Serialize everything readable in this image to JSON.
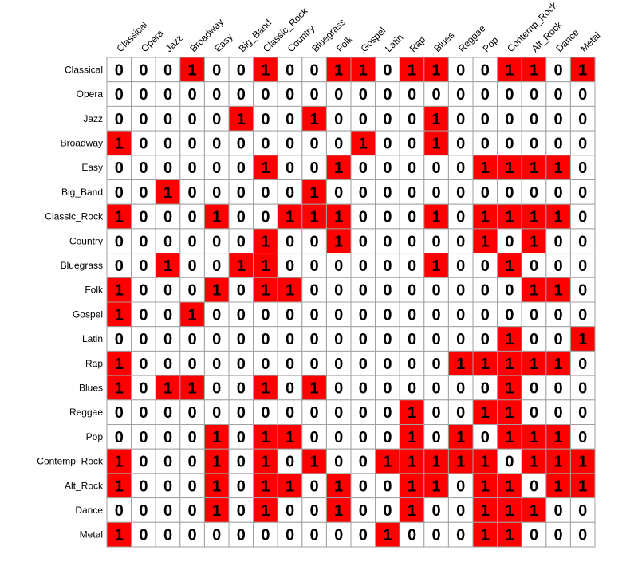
{
  "chart_data": {
    "type": "heatmap",
    "title": "",
    "xlabel": "",
    "ylabel": "",
    "rows": [
      "Classical",
      "Opera",
      "Jazz",
      "Broadway",
      "Easy",
      "Big_Band",
      "Classic_Rock",
      "Country",
      "Bluegrass",
      "Folk",
      "Gospel",
      "Latin",
      "Rap",
      "Blues",
      "Reggae",
      "Pop",
      "Contemp_Rock",
      "Alt_Rock",
      "Dance",
      "Metal"
    ],
    "columns": [
      "Classical",
      "Opera",
      "Jazz",
      "Broadway",
      "Easy",
      "Big_Band",
      "Classic_Rock",
      "Country",
      "Bluegrass",
      "Folk",
      "Gospel",
      "Latin",
      "Rap",
      "Blues",
      "Reggae",
      "Pop",
      "Contemp_Rock",
      "Alt_Rock",
      "Dance",
      "Metal"
    ],
    "values": [
      [
        0,
        0,
        0,
        1,
        0,
        0,
        1,
        0,
        0,
        1,
        1,
        0,
        1,
        1,
        0,
        0,
        1,
        1,
        0,
        1
      ],
      [
        0,
        0,
        0,
        0,
        0,
        0,
        0,
        0,
        0,
        0,
        0,
        0,
        0,
        0,
        0,
        0,
        0,
        0,
        0,
        0
      ],
      [
        0,
        0,
        0,
        0,
        0,
        1,
        0,
        0,
        1,
        0,
        0,
        0,
        0,
        1,
        0,
        0,
        0,
        0,
        0,
        0
      ],
      [
        1,
        0,
        0,
        0,
        0,
        0,
        0,
        0,
        0,
        0,
        1,
        0,
        0,
        1,
        0,
        0,
        0,
        0,
        0,
        0
      ],
      [
        0,
        0,
        0,
        0,
        0,
        0,
        1,
        0,
        0,
        1,
        0,
        0,
        0,
        0,
        0,
        1,
        1,
        1,
        1,
        0
      ],
      [
        0,
        0,
        1,
        0,
        0,
        0,
        0,
        0,
        1,
        0,
        0,
        0,
        0,
        0,
        0,
        0,
        0,
        0,
        0,
        0
      ],
      [
        1,
        0,
        0,
        0,
        1,
        0,
        0,
        1,
        1,
        1,
        0,
        0,
        0,
        1,
        0,
        1,
        1,
        1,
        1,
        0
      ],
      [
        0,
        0,
        0,
        0,
        0,
        0,
        1,
        0,
        0,
        1,
        0,
        0,
        0,
        0,
        0,
        1,
        0,
        1,
        0,
        0
      ],
      [
        0,
        0,
        1,
        0,
        0,
        1,
        1,
        0,
        0,
        0,
        0,
        0,
        0,
        1,
        0,
        0,
        1,
        0,
        0,
        0
      ],
      [
        1,
        0,
        0,
        0,
        1,
        0,
        1,
        1,
        0,
        0,
        0,
        0,
        0,
        0,
        0,
        0,
        0,
        1,
        1,
        0
      ],
      [
        1,
        0,
        0,
        1,
        0,
        0,
        0,
        0,
        0,
        0,
        0,
        0,
        0,
        0,
        0,
        0,
        0,
        0,
        0,
        0
      ],
      [
        0,
        0,
        0,
        0,
        0,
        0,
        0,
        0,
        0,
        0,
        0,
        0,
        0,
        0,
        0,
        0,
        1,
        0,
        0,
        1
      ],
      [
        1,
        0,
        0,
        0,
        0,
        0,
        0,
        0,
        0,
        0,
        0,
        0,
        0,
        0,
        1,
        1,
        1,
        1,
        1,
        0
      ],
      [
        1,
        0,
        1,
        1,
        0,
        0,
        1,
        0,
        1,
        0,
        0,
        0,
        0,
        0,
        0,
        0,
        1,
        0,
        0,
        0
      ],
      [
        0,
        0,
        0,
        0,
        0,
        0,
        0,
        0,
        0,
        0,
        0,
        0,
        1,
        0,
        0,
        1,
        1,
        0,
        0,
        0
      ],
      [
        0,
        0,
        0,
        0,
        1,
        0,
        1,
        1,
        0,
        0,
        0,
        0,
        1,
        0,
        1,
        0,
        1,
        1,
        1,
        0
      ],
      [
        1,
        0,
        0,
        0,
        1,
        0,
        1,
        0,
        1,
        0,
        0,
        1,
        1,
        1,
        1,
        1,
        0,
        1,
        1,
        1
      ],
      [
        1,
        0,
        0,
        0,
        1,
        0,
        1,
        1,
        0,
        1,
        0,
        0,
        1,
        1,
        0,
        1,
        1,
        0,
        1,
        1
      ],
      [
        0,
        0,
        0,
        0,
        1,
        0,
        1,
        0,
        0,
        1,
        0,
        0,
        1,
        0,
        0,
        1,
        1,
        1,
        0,
        0
      ],
      [
        1,
        0,
        0,
        0,
        0,
        0,
        0,
        0,
        0,
        0,
        0,
        1,
        0,
        0,
        0,
        1,
        1,
        0,
        0,
        0
      ]
    ],
    "colors": {
      "one": "#ff0000",
      "zero": "#ffffff",
      "grid": "#a0a0a0",
      "text": "#000000"
    },
    "grid": true,
    "legend": "none"
  }
}
